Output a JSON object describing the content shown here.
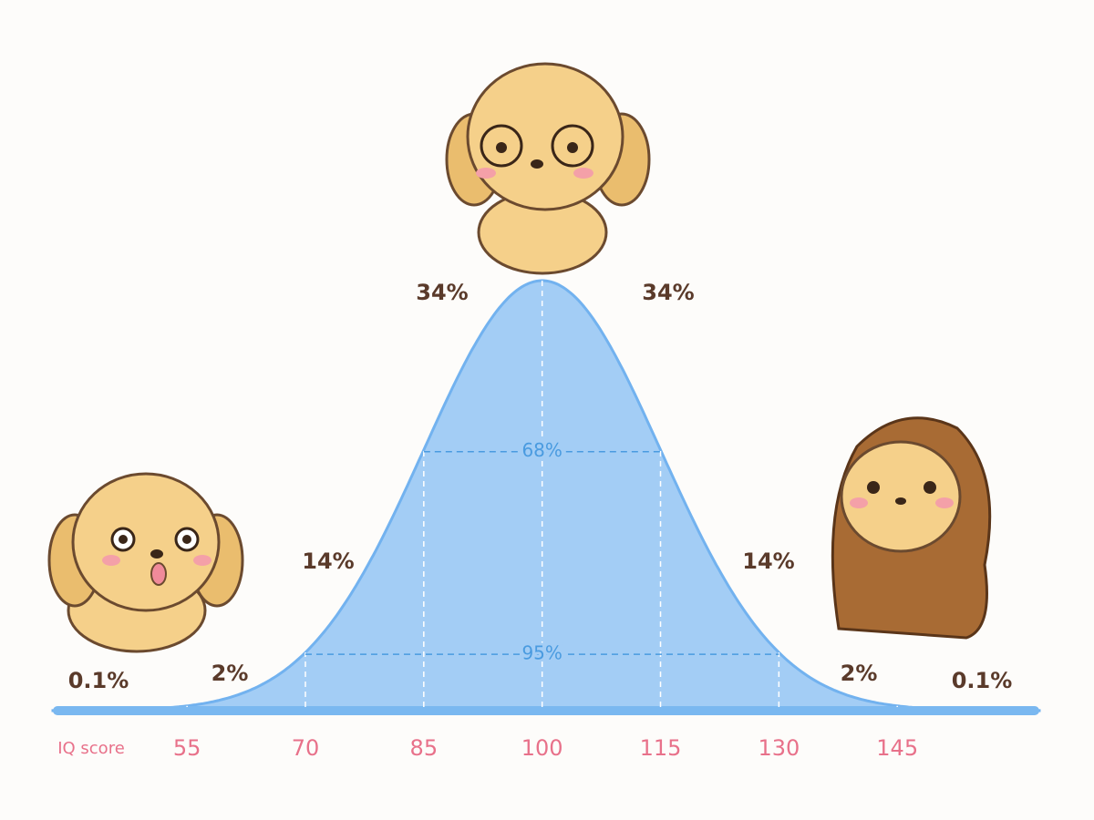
{
  "chart_data": {
    "type": "bell",
    "x_label": "IQ score",
    "xlim": [
      38,
      163
    ],
    "xticks": [
      55,
      70,
      85,
      100,
      115,
      130,
      145
    ],
    "segments": [
      {
        "value": 0.1,
        "label": "0.1%"
      },
      {
        "value": 2,
        "label": "2%"
      },
      {
        "value": 14,
        "label": "14%"
      },
      {
        "value": 34,
        "label": "34%"
      },
      {
        "value": 34,
        "label": "34%"
      },
      {
        "value": 14,
        "label": "14%"
      },
      {
        "value": 2,
        "label": "2%"
      },
      {
        "value": 0.1,
        "label": "0.1%"
      }
    ],
    "intervals": [
      {
        "value": 68,
        "label": "68%",
        "from": 85,
        "to": 115
      },
      {
        "value": 95,
        "label": "95%",
        "from": 70,
        "to": 130
      }
    ],
    "color": "#a3cdf5"
  }
}
